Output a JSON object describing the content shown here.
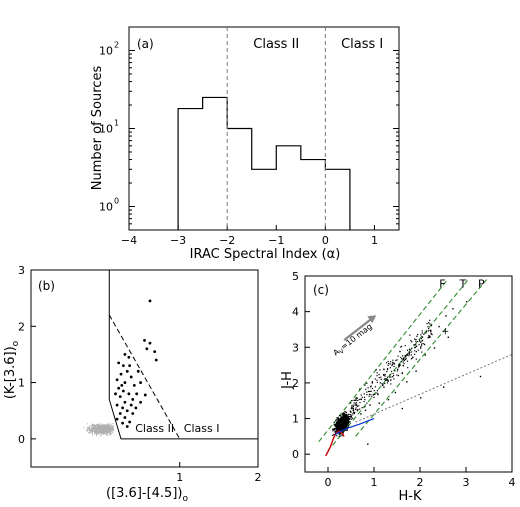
{
  "chart_data": [
    {
      "type": "histogram",
      "panel_label": "(a)",
      "xlabel": "IRAC Spectral Index (α)",
      "ylabel": "Number of Sources",
      "xlim": [
        -4,
        1.5
      ],
      "ylim": [
        0.5,
        200
      ],
      "yscale": "log",
      "xticks": [
        -4,
        -3,
        -2,
        -1,
        0,
        1
      ],
      "xtick_labels": [
        "−4",
        "−3",
        "−2",
        "−1",
        "0",
        "1"
      ],
      "yticks": [
        1,
        10,
        100
      ],
      "ytick_labels": [
        "10",
        "10",
        "10"
      ],
      "ytick_exponents": [
        "0",
        "1",
        "2"
      ],
      "bin_edges": [
        -3.0,
        -2.5,
        -2.0,
        -1.5,
        -1.0,
        -0.5,
        0.0,
        0.5
      ],
      "counts": [
        18,
        25,
        10,
        3,
        6,
        4,
        3
      ],
      "dividers": [
        -2,
        0
      ],
      "region_labels": [
        {
          "text": "Class II",
          "x": -1.0
        },
        {
          "text": "Class I",
          "x": 0.75
        }
      ]
    },
    {
      "type": "scatter",
      "panel_label": "(b)",
      "xlabel": "([3.6]-[4.5])",
      "xlabel_sub": "o",
      "ylabel": "(K-[3.6])",
      "ylabel_sub": "o",
      "xlim": [
        -0.9,
        2.0
      ],
      "ylim": [
        -0.5,
        3.0
      ],
      "xticks": [
        1,
        2
      ],
      "xtick_labels": [
        "1",
        "2"
      ],
      "yticks": [
        0,
        1,
        2,
        3
      ],
      "ytick_labels": [
        "0",
        "1",
        "2",
        "3"
      ],
      "boundary_solid": [
        [
          0.1,
          3.0
        ],
        [
          0.1,
          0.7
        ],
        [
          0.25,
          0.0
        ],
        [
          2.0,
          0.0
        ]
      ],
      "boundary_dashed": [
        [
          0.1,
          2.2
        ],
        [
          1.0,
          0.0
        ]
      ],
      "region_labels": [
        {
          "text": "Class II",
          "x": 0.68,
          "y": 0.12
        },
        {
          "text": "Class I",
          "x": 1.28,
          "y": 0.12
        }
      ],
      "highlight_points": [
        [
          0.62,
          2.45
        ],
        [
          0.55,
          1.75
        ],
        [
          0.62,
          1.7
        ],
        [
          0.58,
          1.6
        ],
        [
          0.68,
          1.55
        ],
        [
          0.7,
          1.4
        ],
        [
          0.3,
          1.5
        ],
        [
          0.35,
          1.45
        ],
        [
          0.22,
          1.35
        ],
        [
          0.28,
          1.3
        ],
        [
          0.33,
          1.2
        ],
        [
          0.25,
          1.15
        ],
        [
          0.2,
          1.05
        ],
        [
          0.3,
          1.0
        ],
        [
          0.38,
          1.1
        ],
        [
          0.42,
          0.95
        ],
        [
          0.5,
          1.0
        ],
        [
          0.47,
          1.2
        ],
        [
          0.22,
          0.9
        ],
        [
          0.28,
          0.85
        ],
        [
          0.35,
          0.8
        ],
        [
          0.4,
          0.7
        ],
        [
          0.24,
          0.75
        ],
        [
          0.3,
          0.65
        ],
        [
          0.2,
          0.6
        ],
        [
          0.27,
          0.55
        ],
        [
          0.33,
          0.5
        ],
        [
          0.4,
          0.45
        ],
        [
          0.24,
          0.45
        ],
        [
          0.3,
          0.38
        ],
        [
          0.36,
          0.3
        ],
        [
          0.44,
          0.55
        ],
        [
          0.5,
          0.65
        ],
        [
          0.2,
          0.35
        ],
        [
          0.27,
          0.28
        ],
        [
          0.33,
          0.22
        ],
        [
          0.26,
          0.95
        ],
        [
          0.38,
          0.6
        ],
        [
          0.45,
          0.8
        ],
        [
          0.18,
          0.8
        ],
        [
          0.56,
          0.78
        ],
        [
          0.36,
          1.3
        ]
      ],
      "field_cloud": {
        "color": "#b0b0b0",
        "center": [
          0.0,
          0.18
        ],
        "spread": [
          0.16,
          0.08
        ]
      }
    },
    {
      "type": "scatter",
      "panel_label": "(c)",
      "xlabel": "H-K",
      "ylabel": "J-H",
      "xlim": [
        -0.5,
        4.0
      ],
      "ylim": [
        -0.5,
        5.0
      ],
      "xticks": [
        0,
        1,
        2,
        3,
        4
      ],
      "xtick_labels": [
        "0",
        "1",
        "2",
        "3",
        "4"
      ],
      "yticks": [
        0,
        1,
        2,
        3,
        4,
        5
      ],
      "ytick_labels": [
        "0",
        "1",
        "2",
        "3",
        "4",
        "5"
      ],
      "reddening_label": "A",
      "reddening_label_sub": "V",
      "reddening_label_rest": "=10 mag",
      "reddening_arrow": [
        [
          0.35,
          3.2
        ],
        [
          1.05,
          3.9
        ]
      ],
      "reddening_bands": [
        {
          "name": "F",
          "from": [
            -0.2,
            0.35
          ],
          "to": [
            2.6,
            4.9
          ],
          "color": "#2e8b2e"
        },
        {
          "name": "T",
          "from": [
            0.1,
            0.25
          ],
          "to": [
            3.05,
            4.9
          ],
          "color": "#2e8b2e"
        },
        {
          "name": "P",
          "from": [
            0.6,
            0.5
          ],
          "to": [
            3.45,
            4.9
          ],
          "color": "#2e8b2e"
        }
      ],
      "ctts_locus": {
        "from": [
          0.6,
          0.9
        ],
        "to": [
          4.0,
          2.8
        ],
        "color": "#777777"
      },
      "dwarf_locus_color": "#cc0000",
      "giant_locus_color": "#0033cc",
      "star_cloud": {
        "color": "#000000",
        "center": [
          0.3,
          0.6
        ],
        "spread": [
          0.15,
          0.22
        ]
      },
      "scatter_points": [
        [
          0.9,
          1.4
        ],
        [
          1.0,
          1.7
        ],
        [
          1.2,
          1.9
        ],
        [
          1.35,
          2.1
        ],
        [
          1.5,
          2.4
        ],
        [
          1.6,
          2.3
        ],
        [
          1.8,
          2.7
        ],
        [
          2.0,
          3.0
        ],
        [
          2.2,
          3.3
        ],
        [
          2.4,
          3.6
        ],
        [
          2.55,
          3.9
        ],
        [
          2.1,
          2.8
        ],
        [
          1.7,
          2.05
        ],
        [
          1.3,
          1.55
        ],
        [
          1.1,
          1.45
        ],
        [
          1.45,
          1.75
        ],
        [
          0.8,
          1.25
        ],
        [
          0.7,
          1.15
        ],
        [
          1.9,
          2.35
        ],
        [
          2.3,
          3.0
        ],
        [
          2.6,
          3.3
        ],
        [
          3.0,
          4.3
        ],
        [
          2.0,
          1.6
        ],
        [
          2.5,
          1.9
        ],
        [
          3.3,
          2.2
        ],
        [
          1.6,
          1.3
        ],
        [
          1.2,
          2.4
        ],
        [
          0.95,
          2.05
        ],
        [
          1.55,
          2.9
        ],
        [
          2.7,
          4.1
        ],
        [
          0.6,
          1.6
        ],
        [
          0.85,
          0.3
        ]
      ],
      "plus_marker": [
        2.55,
        3.45
      ]
    }
  ]
}
